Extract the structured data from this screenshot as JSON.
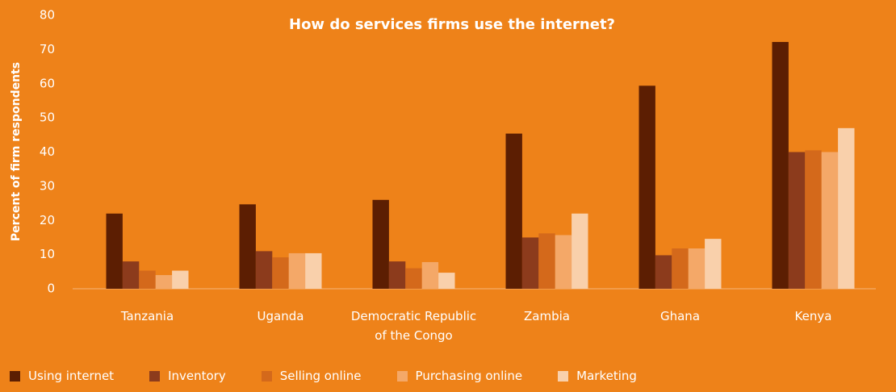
{
  "chart_data": {
    "type": "bar",
    "title": "How do services firms use the internet?",
    "y_label": "Percent of firm respondents",
    "categories": [
      "Tanzania",
      "Uganda",
      "Democratic Republic of the Congo",
      "Zambia",
      "Ghana",
      "Kenya"
    ],
    "series": [
      {
        "name": "Using internet",
        "color": "#5c1e02",
        "values": [
          22,
          24.7,
          26,
          45.4,
          59.4,
          72.2
        ]
      },
      {
        "name": "Inventory",
        "color": "#8c3b1c",
        "values": [
          8,
          11,
          8,
          15,
          9.8,
          40
        ]
      },
      {
        "name": "Selling online",
        "color": "#d4691b",
        "values": [
          5.3,
          9.2,
          6,
          16.2,
          11.8,
          40.5
        ]
      },
      {
        "name": "Purchasing online",
        "color": "#f4a868",
        "values": [
          4,
          10.4,
          7.8,
          15.7,
          11.8,
          40
        ]
      },
      {
        "name": "Marketing",
        "color": "#f9d0ab",
        "values": [
          5.3,
          10.4,
          4.7,
          22,
          14.6,
          47
        ]
      }
    ],
    "ylim": [
      0,
      80
    ],
    "yticks": [
      0,
      10,
      20,
      30,
      40,
      50,
      60,
      70,
      80
    ]
  }
}
